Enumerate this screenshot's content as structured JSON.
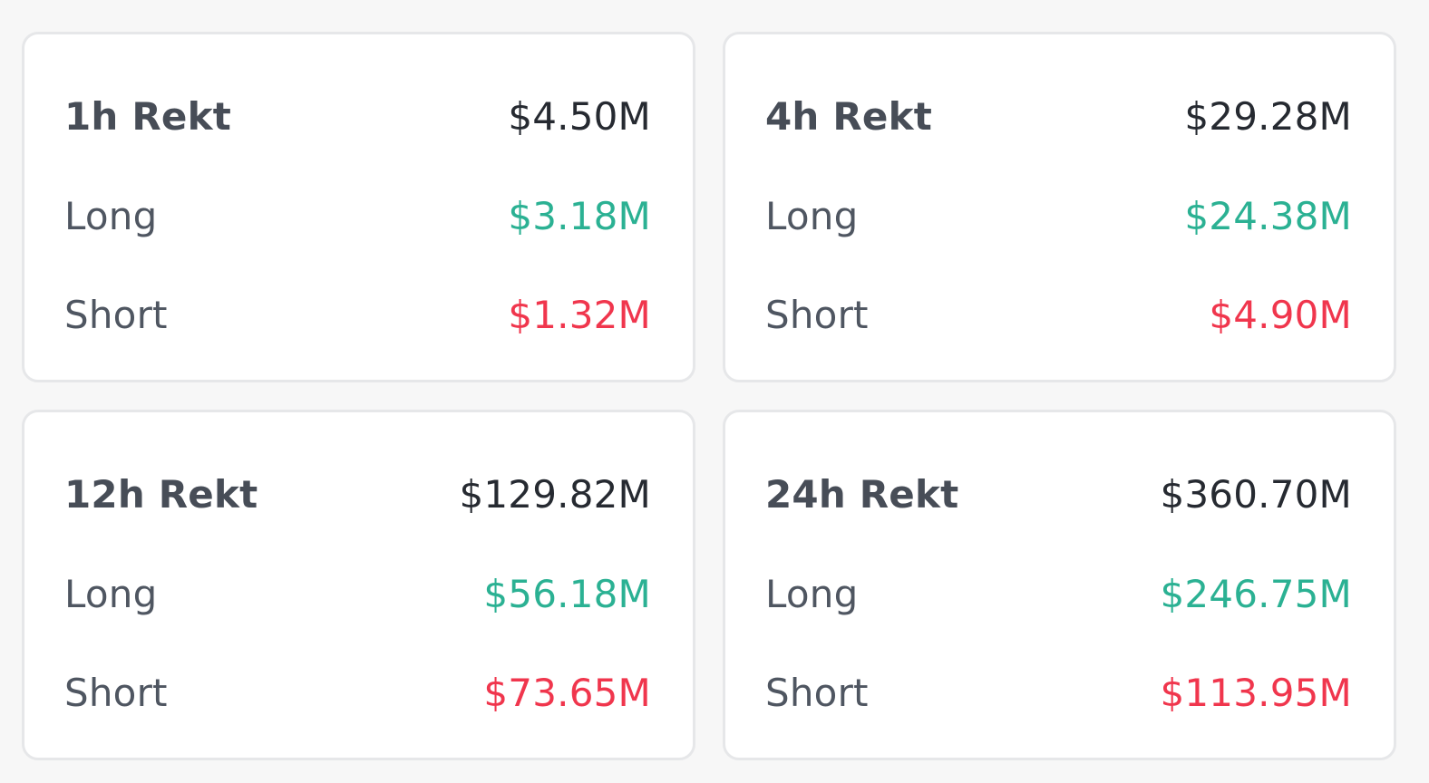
{
  "colors": {
    "long": "#2bb193",
    "short": "#f0364d",
    "total": "#262a31",
    "label": "#4f5661"
  },
  "cards": [
    {
      "title": "1h Rekt",
      "total": "$4.50M",
      "long_label": "Long",
      "long_value": "$3.18M",
      "short_label": "Short",
      "short_value": "$1.32M"
    },
    {
      "title": "4h Rekt",
      "total": "$29.28M",
      "long_label": "Long",
      "long_value": "$24.38M",
      "short_label": "Short",
      "short_value": "$4.90M"
    },
    {
      "title": "12h Rekt",
      "total": "$129.82M",
      "long_label": "Long",
      "long_value": "$56.18M",
      "short_label": "Short",
      "short_value": "$73.65M"
    },
    {
      "title": "24h Rekt",
      "total": "$360.70M",
      "long_label": "Long",
      "long_value": "$246.75M",
      "short_label": "Short",
      "short_value": "$113.95M"
    }
  ]
}
